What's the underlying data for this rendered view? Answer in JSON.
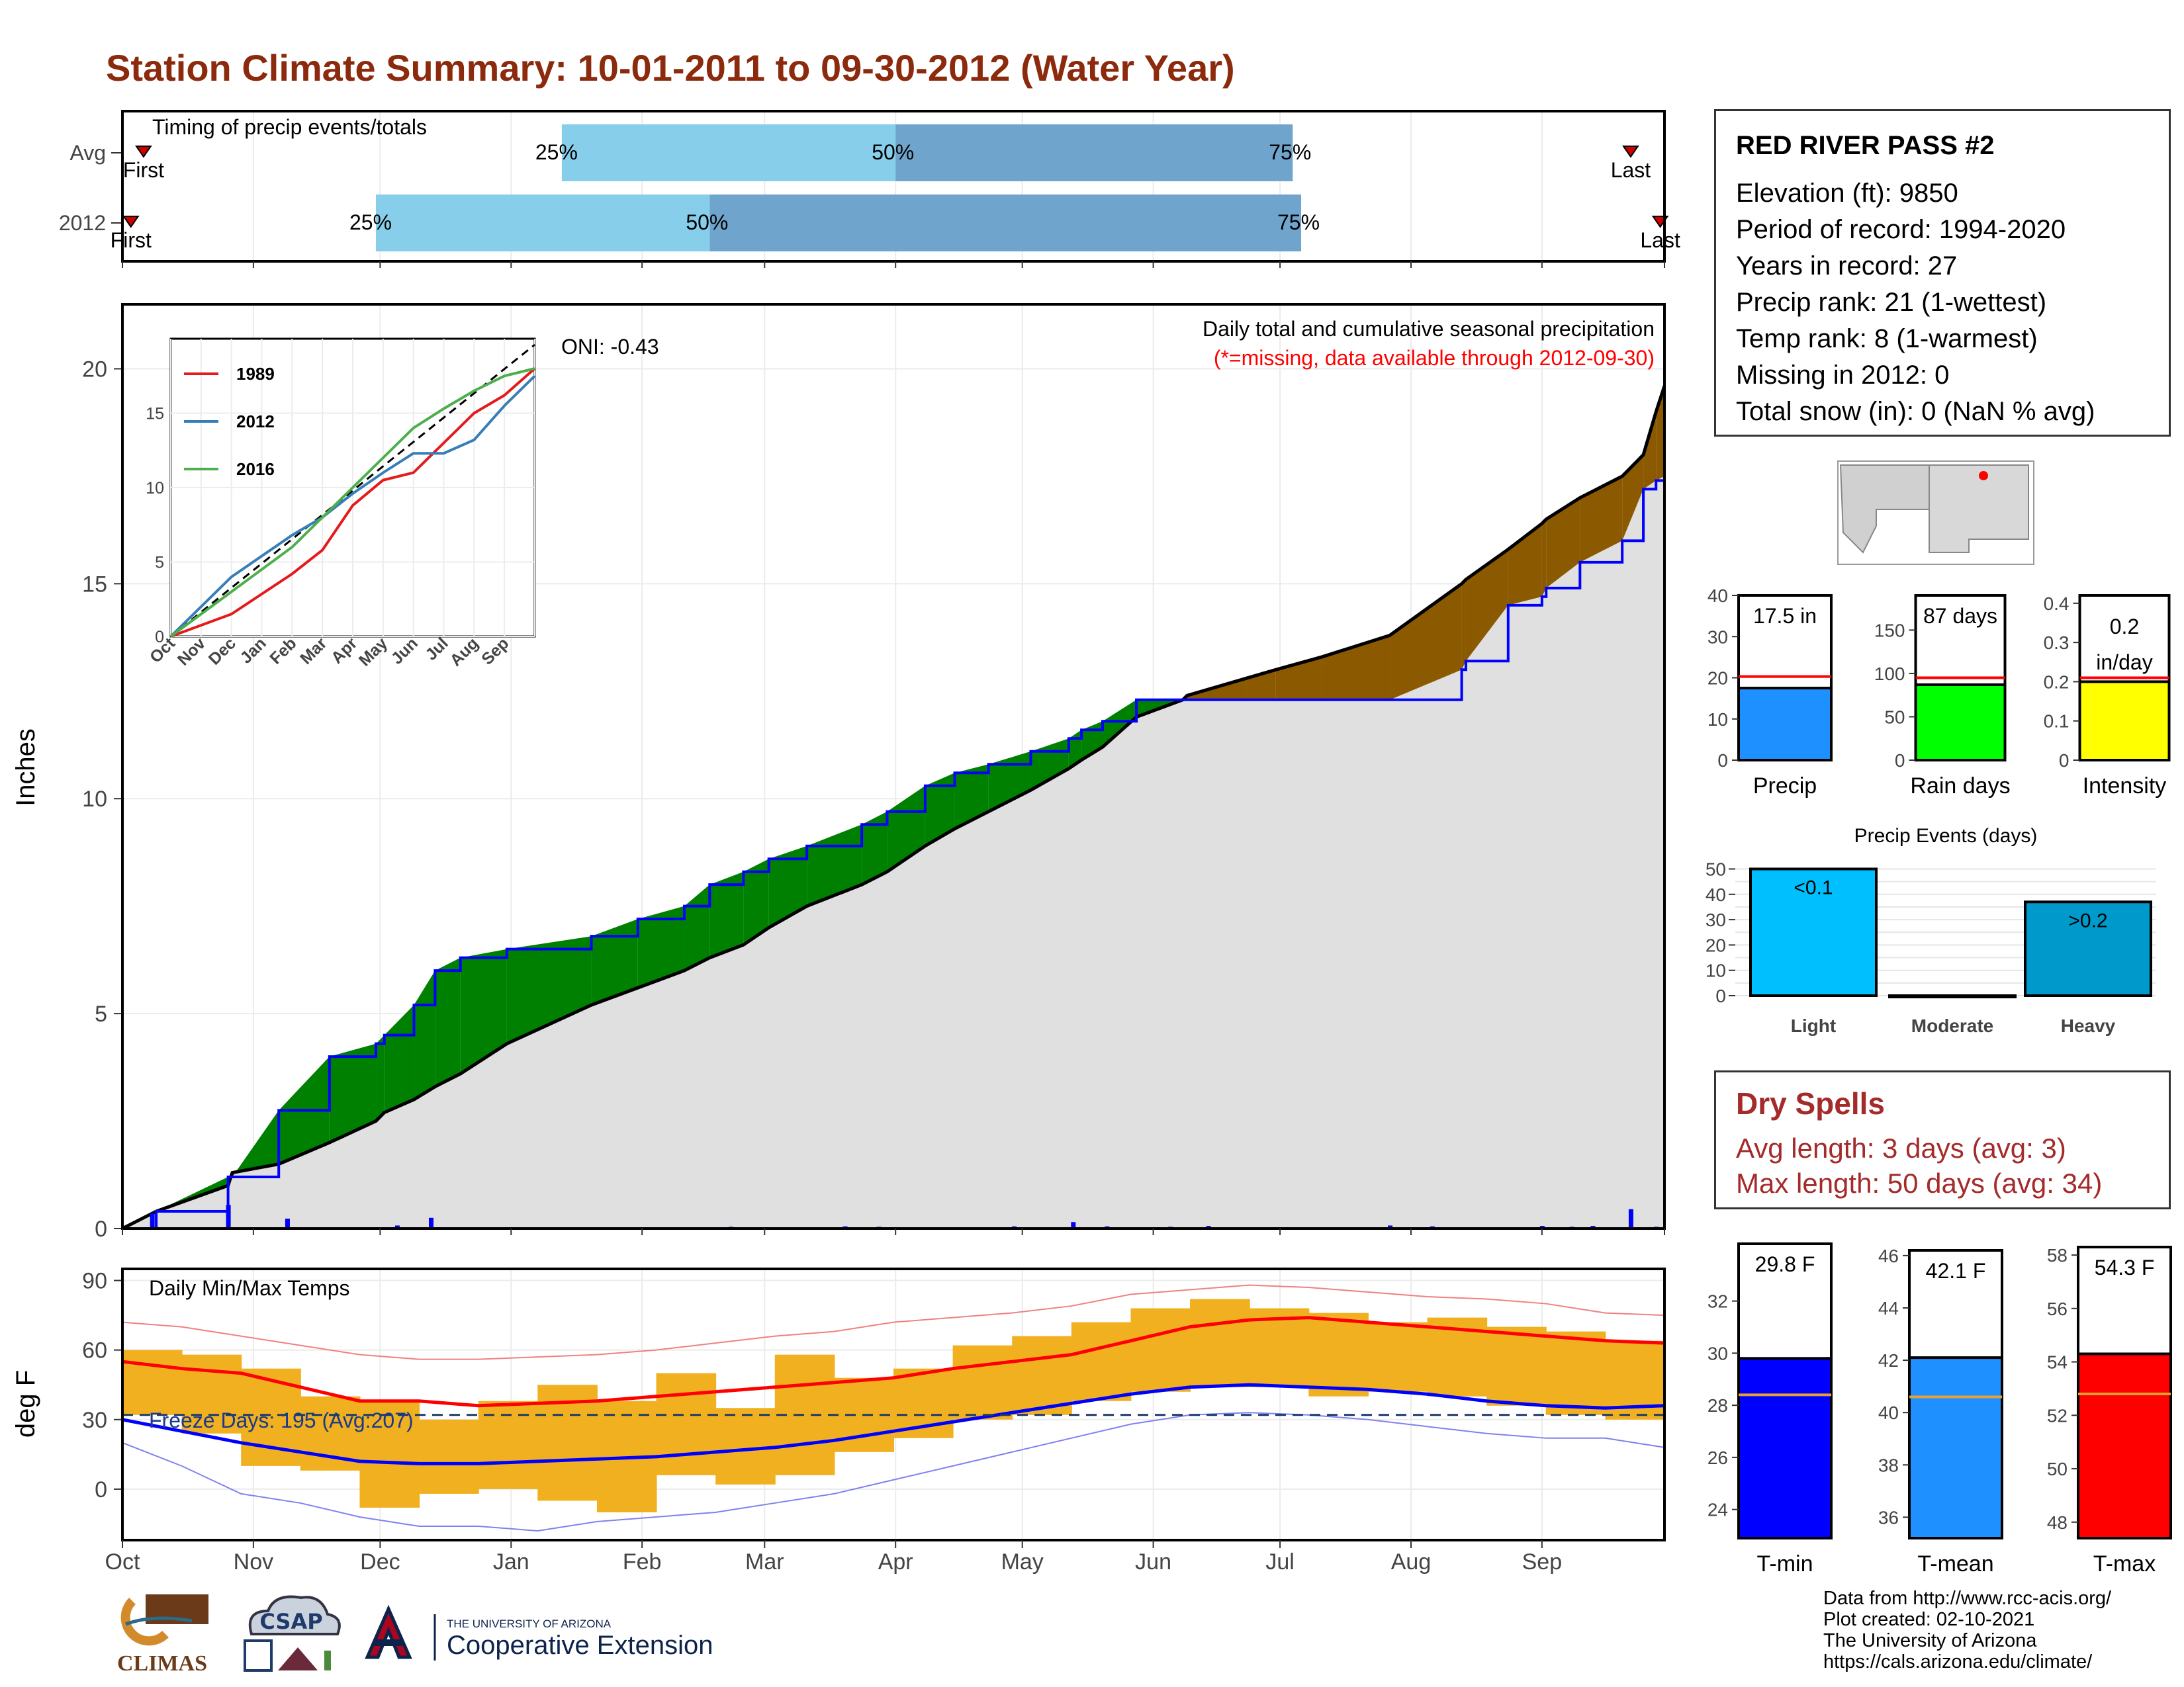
{
  "page": {
    "title": "Station Climate Summary: 10-01-2011 to 09-30-2012 (Water Year)"
  },
  "station": {
    "name": "RED RIVER PASS #2",
    "lines": [
      "Elevation (ft): 9850",
      "Period of record: 1994-2020",
      "Years in record: 27",
      "Precip rank: 21 (1-wettest)",
      "Temp rank: 8 (1-warmest)",
      "Missing in 2012: 0",
      "Total snow (in): 0 (NaN % avg)"
    ]
  },
  "dry_spells": {
    "title": "Dry Spells",
    "avg_length": "Avg length: 3 days (avg: 3)",
    "max_length": "Max length: 50 days (avg: 34)"
  },
  "credits": [
    "Data from http://www.rcc-acis.org/",
    "Plot created: 02-10-2021",
    "The University of Arizona",
    "https://cals.arizona.edu/climate/"
  ],
  "logos": {
    "climas": "CLIMAS",
    "csap": "CSAP",
    "ua_line1": "THE UNIVERSITY OF ARIZONA",
    "ua_line2": "Cooperative Extension"
  },
  "months": [
    "Oct",
    "Nov",
    "Dec",
    "Jan",
    "Feb",
    "Mar",
    "Apr",
    "May",
    "Jun",
    "Jul",
    "Aug",
    "Sep"
  ],
  "colors": {
    "title": "#8b2a0c",
    "light_blue": "#87ceeb",
    "mid_blue": "#6fa5cc",
    "above": "#008000",
    "below": "#8b5a00",
    "avg_fill": "#e0e0e0",
    "temp_bar": "#f0b020",
    "tmax_line": "#ff0000",
    "tmin_line": "#0000ff"
  },
  "chart_data": [
    {
      "type": "bar",
      "name": "timing",
      "title": "Timing of precip events/totals",
      "rows": [
        {
          "label": "Avg",
          "first_label": "First",
          "last_label": "Last",
          "p25_label": "25%",
          "p50_label": "50%",
          "p75_label": "75%",
          "first_day": 5,
          "p25_day": 104,
          "p50_day": 183,
          "p75_day": 277,
          "last_day": 357
        },
        {
          "label": "2012",
          "first_label": "First",
          "last_label": "Last",
          "p25_label": "25%",
          "p50_label": "50%",
          "p75_label": "75%",
          "first_day": 2,
          "p25_day": 60,
          "p50_day": 139,
          "p75_day": 279,
          "last_day": 364
        }
      ]
    },
    {
      "type": "area",
      "name": "cumulative_precip",
      "title": "Daily total and cumulative seasonal precipitation",
      "subtitle": "(*=missing, data available through 2012-09-30)",
      "ylabel": "Inches",
      "yticks": [
        0,
        5,
        10,
        15,
        20
      ],
      "ylim": [
        0,
        21.5
      ],
      "oni": "ONI: -0.43",
      "x_days": [
        0,
        8,
        25,
        26,
        37,
        49,
        60,
        62,
        69,
        74,
        80,
        91,
        111,
        122,
        133,
        139,
        147,
        153,
        162,
        175,
        181,
        190,
        197,
        205,
        215,
        224,
        227,
        232,
        240,
        251,
        252,
        266,
        273,
        284,
        300,
        317,
        318,
        328,
        336,
        337,
        345,
        355,
        360,
        363,
        365
      ],
      "cum_2012": [
        0,
        0.4,
        1.2,
        1.2,
        2.75,
        4.0,
        4.3,
        4.5,
        5.2,
        6.0,
        6.3,
        6.5,
        6.8,
        7.2,
        7.5,
        8.0,
        8.3,
        8.6,
        8.9,
        9.4,
        9.7,
        10.3,
        10.6,
        10.8,
        11.1,
        11.4,
        11.6,
        11.8,
        12.3,
        12.3,
        12.3,
        12.3,
        12.3,
        12.3,
        12.3,
        13.0,
        13.2,
        14.5,
        14.7,
        14.9,
        15.5,
        16.0,
        17.2,
        17.4,
        17.5
      ],
      "cum_avg": [
        0,
        0.4,
        1.0,
        1.3,
        1.5,
        2.0,
        2.5,
        2.7,
        3.0,
        3.3,
        3.6,
        4.3,
        5.2,
        5.6,
        6.0,
        6.3,
        6.6,
        7.0,
        7.5,
        8.0,
        8.3,
        8.9,
        9.3,
        9.7,
        10.2,
        10.7,
        10.9,
        11.2,
        11.9,
        12.3,
        12.4,
        12.8,
        13.0,
        13.3,
        13.8,
        15.0,
        15.1,
        15.8,
        16.4,
        16.5,
        17.0,
        17.5,
        18.0,
        19.0,
        19.6
      ],
      "daily_2012": [
        {
          "x": 7,
          "y": 0.35
        },
        {
          "x": 25,
          "y": 0.55
        },
        {
          "x": 39,
          "y": 0.23
        },
        {
          "x": 65,
          "y": 0.07
        },
        {
          "x": 73,
          "y": 0.25
        },
        {
          "x": 119,
          "y": 0.03
        },
        {
          "x": 144,
          "y": 0.04
        },
        {
          "x": 152,
          "y": 0.03
        },
        {
          "x": 171,
          "y": 0.05
        },
        {
          "x": 179,
          "y": 0.04
        },
        {
          "x": 183,
          "y": 0.03
        },
        {
          "x": 211,
          "y": 0.05
        },
        {
          "x": 225,
          "y": 0.15
        },
        {
          "x": 233,
          "y": 0.05
        },
        {
          "x": 248,
          "y": 0.04
        },
        {
          "x": 257,
          "y": 0.06
        },
        {
          "x": 300,
          "y": 0.07
        },
        {
          "x": 310,
          "y": 0.05
        },
        {
          "x": 336,
          "y": 0.06
        },
        {
          "x": 343,
          "y": 0.04
        },
        {
          "x": 348,
          "y": 0.06
        },
        {
          "x": 357,
          "y": 0.45
        },
        {
          "x": 363,
          "y": 0.04
        }
      ],
      "inset": {
        "type": "line",
        "yticks": [
          0,
          5,
          10,
          15
        ],
        "ylim": [
          0,
          20
        ],
        "x_ticks": [
          "Oct",
          "Nov",
          "Dec",
          "Jan",
          "Feb",
          "Mar",
          "Apr",
          "May",
          "Jun",
          "Jul",
          "Aug",
          "Sep"
        ],
        "series": [
          {
            "name": "1989",
            "color": "#e41a1c",
            "x": [
              0,
              2,
              4,
              5,
              6,
              7,
              8,
              9,
              10,
              11,
              12
            ],
            "values": [
              0,
              1.5,
              4.2,
              5.8,
              8.8,
              10.5,
              11.0,
              13.0,
              15.0,
              16.2,
              18.0
            ]
          },
          {
            "name": "2012",
            "color": "#377eb8",
            "x": [
              0,
              2,
              4,
              5,
              6,
              7,
              8,
              9,
              10,
              11,
              12
            ],
            "values": [
              0,
              4.0,
              6.8,
              8.0,
              9.6,
              11.0,
              12.3,
              12.3,
              13.2,
              15.5,
              17.5
            ]
          },
          {
            "name": "2016",
            "color": "#4daf4a",
            "x": [
              0,
              2,
              4,
              5,
              6,
              7,
              8,
              9,
              10,
              11,
              12
            ],
            "values": [
              0,
              3.0,
              6.0,
              8.0,
              10.0,
              12.0,
              14.0,
              15.3,
              16.5,
              17.5,
              18.0
            ]
          }
        ],
        "avg_line": {
          "x": [
            0,
            12
          ],
          "values": [
            0,
            19.6
          ]
        }
      }
    },
    {
      "type": "line",
      "name": "daily_temps",
      "title": "Daily Min/Max Temps",
      "ylabel": "deg F",
      "yticks": [
        0,
        30,
        60,
        90
      ],
      "ylim": [
        -22,
        95
      ],
      "freeze_label": "Freeze Days: 195 (Avg:207)",
      "freeze_line": 32,
      "month_x": [
        0,
        31,
        61,
        92,
        123,
        152,
        183,
        213,
        244,
        274,
        305,
        336,
        365
      ],
      "tmax_avg": [
        55,
        52,
        50,
        44,
        38,
        38,
        36,
        37,
        38,
        40,
        42,
        44,
        46,
        48,
        52,
        55,
        58,
        64,
        70,
        73,
        74,
        72,
        70,
        68,
        66,
        64,
        63
      ],
      "tmin_avg": [
        30,
        25,
        20,
        16,
        12,
        11,
        11,
        12,
        13,
        14,
        16,
        18,
        21,
        25,
        29,
        33,
        37,
        41,
        44,
        45,
        44,
        43,
        41,
        38,
        36,
        35,
        36
      ],
      "tmax_record": [
        72,
        70,
        66,
        62,
        58,
        56,
        56,
        57,
        58,
        60,
        63,
        66,
        68,
        72,
        74,
        76,
        79,
        84,
        86,
        88,
        87,
        85,
        83,
        82,
        80,
        76,
        75
      ],
      "tmin_record": [
        20,
        10,
        -2,
        -6,
        -12,
        -16,
        -16,
        -18,
        -14,
        -12,
        -10,
        -6,
        -2,
        4,
        10,
        16,
        22,
        28,
        32,
        33,
        32,
        30,
        27,
        24,
        22,
        22,
        18
      ],
      "tmax_2012": [
        60,
        58,
        52,
        40,
        38,
        30,
        38,
        45,
        38,
        50,
        35,
        58,
        48,
        52,
        62,
        66,
        72,
        78,
        82,
        78,
        76,
        72,
        74,
        70,
        68,
        64,
        68
      ],
      "tmin_2012": [
        32,
        24,
        10,
        8,
        -8,
        -2,
        0,
        -5,
        -10,
        6,
        2,
        6,
        16,
        22,
        30,
        32,
        38,
        42,
        44,
        44,
        40,
        42,
        40,
        36,
        32,
        30,
        34
      ]
    },
    {
      "type": "bar",
      "name": "precip_summary",
      "panels": [
        {
          "label": "Precip",
          "value": 17.5,
          "value_label": "17.5 in",
          "avg": 20.3,
          "ylim": [
            0,
            40
          ],
          "yticks": [
            0,
            10,
            20,
            30,
            40
          ],
          "color": "#1e90ff"
        },
        {
          "label": "Rain days",
          "value": 87,
          "value_label": "87 days",
          "avg": 95,
          "ylim": [
            0,
            190
          ],
          "yticks": [
            0,
            50,
            100,
            150
          ],
          "color": "#00ff00"
        },
        {
          "label": "Intensity",
          "value": 0.2,
          "value_label_1": "0.2",
          "value_label_2": "in/day",
          "avg": 0.21,
          "ylim": [
            0,
            0.42
          ],
          "yticks": [
            0.0,
            0.1,
            0.2,
            0.3,
            0.4
          ],
          "color": "#ffff00"
        }
      ]
    },
    {
      "type": "bar",
      "name": "precip_events",
      "title": "Precip Events (days)",
      "categories": [
        "Light",
        "Moderate",
        "Heavy"
      ],
      "values": [
        50,
        0,
        37
      ],
      "bar_labels": [
        "<0.1",
        "",
        ">0.2"
      ],
      "colors": [
        "#00bfff",
        "#00bfff",
        "#0099cc"
      ],
      "yticks": [
        0,
        10,
        20,
        30,
        40,
        50
      ],
      "ylim": [
        0,
        53
      ]
    },
    {
      "type": "bar",
      "name": "temp_summary",
      "panels": [
        {
          "label": "T-min",
          "value": 29.8,
          "value_label": "29.8 F",
          "avg": 28.4,
          "ylim": [
            22.9,
            34.2
          ],
          "yticks": [
            24,
            26,
            28,
            30,
            32
          ],
          "color": "#0000ff"
        },
        {
          "label": "T-mean",
          "value": 42.1,
          "value_label": "42.1 F",
          "avg": 40.6,
          "ylim": [
            35.2,
            46.2
          ],
          "yticks": [
            36,
            38,
            40,
            42,
            44,
            46
          ],
          "color": "#1e90ff"
        },
        {
          "label": "T-max",
          "value": 54.3,
          "value_label": "54.3 F",
          "avg": 52.8,
          "ylim": [
            47.4,
            58.3
          ],
          "yticks": [
            48,
            50,
            52,
            54,
            56,
            58
          ],
          "color": "#ff0000"
        }
      ]
    }
  ]
}
